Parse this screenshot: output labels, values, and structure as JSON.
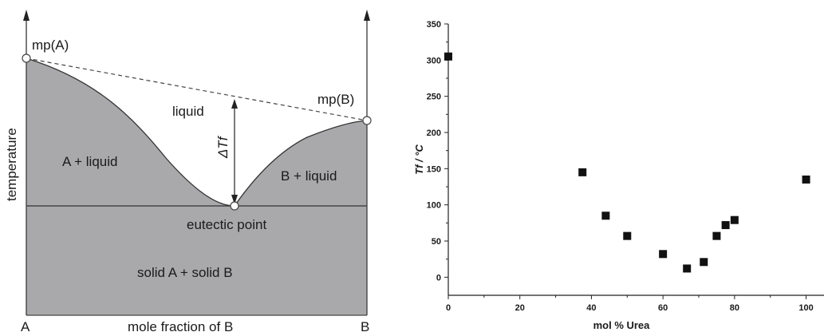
{
  "diagram": {
    "labels": {
      "mp_a": "mp(A)",
      "mp_b": "mp(B)",
      "liquid": "liquid",
      "delta_tf": "ΔTf",
      "a_liquid": "A + liquid",
      "b_liquid": "B + liquid",
      "eutectic": "eutectic point",
      "solid": "solid A + solid B",
      "corner_a": "A",
      "corner_b": "B",
      "xlabel": "mole fraction of B",
      "ylabel": "temperature"
    },
    "colors": {
      "fill": "#a9a9ac",
      "line": "#333333"
    }
  },
  "chart_data": {
    "type": "scatter",
    "title": "",
    "xlabel": "mol % Urea",
    "ylabel": "Tf / °C",
    "xlim": [
      0,
      105
    ],
    "ylim": [
      -25,
      350
    ],
    "xticks": [
      0,
      20,
      40,
      60,
      80,
      100
    ],
    "yticks": [
      0,
      50,
      100,
      150,
      200,
      250,
      300,
      350
    ],
    "series": [
      {
        "marker": "square",
        "color": "#111111",
        "x": [
          0,
          37.5,
          44,
          50,
          60,
          66.7,
          71.4,
          75,
          77.5,
          80,
          100
        ],
        "y": [
          305,
          145,
          85,
          57,
          32,
          12,
          21,
          57,
          72,
          79,
          135
        ]
      }
    ],
    "grid": false,
    "legend": "none"
  }
}
